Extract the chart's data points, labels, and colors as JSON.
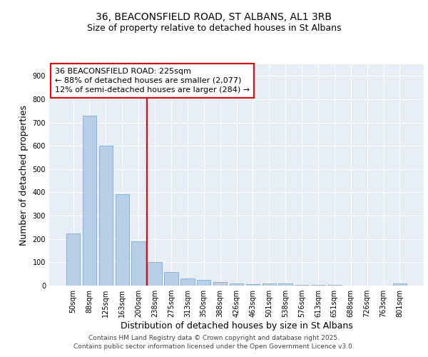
{
  "title_line1": "36, BEACONSFIELD ROAD, ST ALBANS, AL1 3RB",
  "title_line2": "Size of property relative to detached houses in St Albans",
  "xlabel": "Distribution of detached houses by size in St Albans",
  "ylabel": "Number of detached properties",
  "categories": [
    "50sqm",
    "88sqm",
    "125sqm",
    "163sqm",
    "200sqm",
    "238sqm",
    "275sqm",
    "313sqm",
    "350sqm",
    "388sqm",
    "426sqm",
    "463sqm",
    "501sqm",
    "538sqm",
    "576sqm",
    "613sqm",
    "651sqm",
    "688sqm",
    "726sqm",
    "763sqm",
    "801sqm"
  ],
  "values": [
    225,
    730,
    600,
    393,
    190,
    100,
    57,
    30,
    25,
    15,
    10,
    5,
    10,
    10,
    2,
    2,
    2,
    1,
    1,
    1,
    8
  ],
  "bar_color": "#b8cfe8",
  "bar_edge_color": "#7aacd6",
  "vline_pos": 4.5,
  "vline_color": "red",
  "annotation_text_line1": "36 BEACONSFIELD ROAD: 225sqm",
  "annotation_text_line2": "← 88% of detached houses are smaller (2,077)",
  "annotation_text_line3": "12% of semi-detached houses are larger (284) →",
  "ylim": [
    0,
    950
  ],
  "yticks": [
    0,
    100,
    200,
    300,
    400,
    500,
    600,
    700,
    800,
    900
  ],
  "background_color": "#e8eef5",
  "grid_color": "#ffffff",
  "footer_line1": "Contains HM Land Registry data © Crown copyright and database right 2025.",
  "footer_line2": "Contains public sector information licensed under the Open Government Licence v3.0.",
  "title_fontsize": 10,
  "subtitle_fontsize": 9,
  "axis_label_fontsize": 9,
  "tick_fontsize": 7,
  "annot_fontsize": 8,
  "footer_fontsize": 6.5
}
